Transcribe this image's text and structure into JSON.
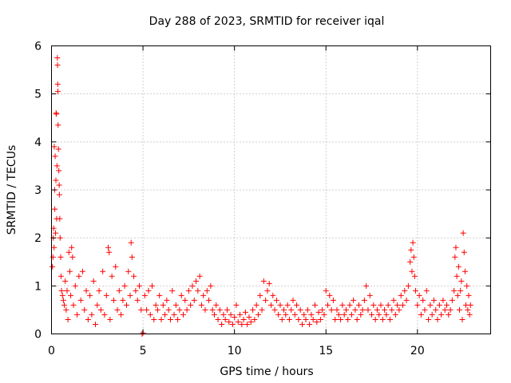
{
  "chart_data": {
    "type": "scatter",
    "title": "Day 288 of 2023, SRMTID for receiver iqal",
    "xlabel": "GPS time / hours",
    "ylabel": "SRMTID / TECUs",
    "xlim": [
      0,
      24
    ],
    "ylim": [
      0,
      6
    ],
    "x_ticks": [
      0,
      5,
      10,
      15,
      20
    ],
    "x_tick_labels": [
      "0",
      "5",
      "10",
      "15",
      "20"
    ],
    "y_ticks": [
      0,
      1,
      2,
      3,
      4,
      5,
      6
    ],
    "y_tick_labels": [
      "0",
      "1",
      "2",
      "3",
      "4",
      "5",
      "6"
    ],
    "grid": true,
    "marker": "+",
    "color": "#ff0000",
    "series": [
      {
        "name": "iqal",
        "points": [
          [
            0.05,
            1.4
          ],
          [
            0.08,
            1.6
          ],
          [
            0.1,
            2.0
          ],
          [
            0.12,
            2.2
          ],
          [
            0.14,
            1.8
          ],
          [
            0.15,
            3.9
          ],
          [
            0.17,
            3.0
          ],
          [
            0.18,
            2.6
          ],
          [
            0.2,
            3.7
          ],
          [
            0.22,
            2.1
          ],
          [
            0.24,
            3.2
          ],
          [
            0.25,
            4.6
          ],
          [
            0.27,
            4.58
          ],
          [
            0.28,
            2.4
          ],
          [
            0.3,
            3.5
          ],
          [
            0.32,
            5.75
          ],
          [
            0.33,
            5.6
          ],
          [
            0.34,
            5.2
          ],
          [
            0.35,
            5.05
          ],
          [
            0.36,
            4.35
          ],
          [
            0.38,
            3.85
          ],
          [
            0.4,
            3.4
          ],
          [
            0.42,
            3.1
          ],
          [
            0.43,
            2.9
          ],
          [
            0.45,
            2.4
          ],
          [
            0.47,
            2.0
          ],
          [
            0.5,
            1.6
          ],
          [
            0.52,
            1.2
          ],
          [
            0.55,
            0.9
          ],
          [
            0.6,
            0.8
          ],
          [
            0.65,
            0.7
          ],
          [
            0.7,
            0.6
          ],
          [
            0.75,
            1.1
          ],
          [
            0.8,
            0.5
          ],
          [
            0.85,
            0.9
          ],
          [
            0.9,
            0.3
          ],
          [
            0.95,
            1.7
          ],
          [
            1.0,
            1.3
          ],
          [
            1.05,
            0.8
          ],
          [
            1.1,
            1.8
          ],
          [
            1.15,
            1.6
          ],
          [
            1.2,
            0.6
          ],
          [
            1.3,
            1.0
          ],
          [
            1.4,
            0.4
          ],
          [
            1.5,
            1.2
          ],
          [
            1.6,
            0.7
          ],
          [
            1.7,
            1.3
          ],
          [
            1.8,
            0.5
          ],
          [
            1.9,
            0.9
          ],
          [
            2.0,
            0.3
          ],
          [
            2.1,
            0.8
          ],
          [
            2.2,
            0.4
          ],
          [
            2.3,
            1.1
          ],
          [
            2.4,
            0.2
          ],
          [
            2.5,
            0.6
          ],
          [
            2.6,
            0.9
          ],
          [
            2.7,
            0.5
          ],
          [
            2.8,
            1.3
          ],
          [
            2.9,
            0.4
          ],
          [
            3.0,
            0.8
          ],
          [
            3.1,
            1.8
          ],
          [
            3.15,
            1.7
          ],
          [
            3.2,
            0.3
          ],
          [
            3.3,
            1.2
          ],
          [
            3.4,
            0.7
          ],
          [
            3.5,
            1.4
          ],
          [
            3.6,
            0.5
          ],
          [
            3.7,
            0.9
          ],
          [
            3.8,
            0.4
          ],
          [
            3.9,
            0.7
          ],
          [
            4.0,
            1.0
          ],
          [
            4.1,
            0.6
          ],
          [
            4.2,
            1.3
          ],
          [
            4.3,
            0.8
          ],
          [
            4.35,
            1.9
          ],
          [
            4.4,
            1.6
          ],
          [
            4.5,
            1.2
          ],
          [
            4.6,
            0.9
          ],
          [
            4.7,
            0.7
          ],
          [
            4.8,
            1.0
          ],
          [
            4.9,
            0.5
          ],
          [
            4.95,
            0.0
          ],
          [
            5.0,
            0.02
          ],
          [
            5.1,
            0.8
          ],
          [
            5.2,
            0.5
          ],
          [
            5.3,
            0.9
          ],
          [
            5.4,
            0.4
          ],
          [
            5.5,
            1.0
          ],
          [
            5.6,
            0.3
          ],
          [
            5.7,
            0.6
          ],
          [
            5.8,
            0.5
          ],
          [
            5.9,
            0.8
          ],
          [
            6.0,
            0.3
          ],
          [
            6.1,
            0.6
          ],
          [
            6.2,
            0.4
          ],
          [
            6.3,
            0.7
          ],
          [
            6.4,
            0.5
          ],
          [
            6.5,
            0.3
          ],
          [
            6.6,
            0.9
          ],
          [
            6.7,
            0.4
          ],
          [
            6.8,
            0.6
          ],
          [
            6.9,
            0.3
          ],
          [
            7.0,
            0.5
          ],
          [
            7.1,
            0.8
          ],
          [
            7.2,
            0.4
          ],
          [
            7.3,
            0.7
          ],
          [
            7.4,
            0.5
          ],
          [
            7.5,
            0.9
          ],
          [
            7.6,
            0.6
          ],
          [
            7.7,
            1.0
          ],
          [
            7.8,
            0.7
          ],
          [
            7.9,
            1.1
          ],
          [
            8.0,
            0.9
          ],
          [
            8.1,
            1.2
          ],
          [
            8.2,
            0.6
          ],
          [
            8.3,
            0.8
          ],
          [
            8.4,
            0.5
          ],
          [
            8.5,
            0.9
          ],
          [
            8.6,
            0.7
          ],
          [
            8.7,
            1.0
          ],
          [
            8.8,
            0.5
          ],
          [
            8.9,
            0.4
          ],
          [
            9.0,
            0.6
          ],
          [
            9.1,
            0.3
          ],
          [
            9.2,
            0.5
          ],
          [
            9.3,
            0.2
          ],
          [
            9.4,
            0.4
          ],
          [
            9.5,
            0.3
          ],
          [
            9.6,
            0.5
          ],
          [
            9.7,
            0.25
          ],
          [
            9.8,
            0.4
          ],
          [
            9.9,
            0.2
          ],
          [
            10.0,
            0.35
          ],
          [
            10.1,
            0.6
          ],
          [
            10.2,
            0.25
          ],
          [
            10.3,
            0.4
          ],
          [
            10.4,
            0.2
          ],
          [
            10.5,
            0.3
          ],
          [
            10.6,
            0.45
          ],
          [
            10.7,
            0.2
          ],
          [
            10.8,
            0.35
          ],
          [
            10.9,
            0.25
          ],
          [
            11.0,
            0.5
          ],
          [
            11.1,
            0.3
          ],
          [
            11.2,
            0.6
          ],
          [
            11.3,
            0.4
          ],
          [
            11.4,
            0.8
          ],
          [
            11.5,
            0.5
          ],
          [
            11.6,
            1.1
          ],
          [
            11.7,
            0.7
          ],
          [
            11.8,
            0.9
          ],
          [
            11.9,
            1.05
          ],
          [
            12.0,
            0.6
          ],
          [
            12.1,
            0.8
          ],
          [
            12.2,
            0.5
          ],
          [
            12.3,
            0.7
          ],
          [
            12.4,
            0.4
          ],
          [
            12.5,
            0.6
          ],
          [
            12.6,
            0.3
          ],
          [
            12.7,
            0.5
          ],
          [
            12.8,
            0.4
          ],
          [
            12.9,
            0.6
          ],
          [
            13.0,
            0.3
          ],
          [
            13.1,
            0.5
          ],
          [
            13.2,
            0.7
          ],
          [
            13.3,
            0.4
          ],
          [
            13.4,
            0.6
          ],
          [
            13.5,
            0.3
          ],
          [
            13.6,
            0.5
          ],
          [
            13.7,
            0.2
          ],
          [
            13.8,
            0.4
          ],
          [
            13.9,
            0.3
          ],
          [
            14.0,
            0.5
          ],
          [
            14.1,
            0.2
          ],
          [
            14.2,
            0.4
          ],
          [
            14.3,
            0.3
          ],
          [
            14.4,
            0.6
          ],
          [
            14.5,
            0.25
          ],
          [
            14.6,
            0.45
          ],
          [
            14.7,
            0.3
          ],
          [
            14.8,
            0.5
          ],
          [
            14.9,
            0.4
          ],
          [
            15.0,
            0.9
          ],
          [
            15.1,
            0.6
          ],
          [
            15.2,
            0.8
          ],
          [
            15.3,
            0.5
          ],
          [
            15.4,
            0.7
          ],
          [
            15.5,
            0.3
          ],
          [
            15.6,
            0.5
          ],
          [
            15.7,
            0.4
          ],
          [
            15.8,
            0.3
          ],
          [
            15.9,
            0.6
          ],
          [
            16.0,
            0.4
          ],
          [
            16.1,
            0.5
          ],
          [
            16.2,
            0.3
          ],
          [
            16.3,
            0.6
          ],
          [
            16.4,
            0.4
          ],
          [
            16.5,
            0.7
          ],
          [
            16.6,
            0.5
          ],
          [
            16.7,
            0.3
          ],
          [
            16.8,
            0.6
          ],
          [
            16.9,
            0.4
          ],
          [
            17.0,
            0.5
          ],
          [
            17.1,
            0.7
          ],
          [
            17.2,
            1.0
          ],
          [
            17.3,
            0.5
          ],
          [
            17.4,
            0.8
          ],
          [
            17.5,
            0.4
          ],
          [
            17.6,
            0.6
          ],
          [
            17.7,
            0.3
          ],
          [
            17.8,
            0.5
          ],
          [
            17.9,
            0.4
          ],
          [
            18.0,
            0.6
          ],
          [
            18.1,
            0.3
          ],
          [
            18.2,
            0.5
          ],
          [
            18.3,
            0.4
          ],
          [
            18.4,
            0.6
          ],
          [
            18.5,
            0.3
          ],
          [
            18.6,
            0.5
          ],
          [
            18.7,
            0.7
          ],
          [
            18.8,
            0.4
          ],
          [
            18.9,
            0.6
          ],
          [
            19.0,
            0.5
          ],
          [
            19.1,
            0.8
          ],
          [
            19.2,
            0.6
          ],
          [
            19.3,
            0.9
          ],
          [
            19.4,
            0.7
          ],
          [
            19.5,
            1.0
          ],
          [
            19.6,
            1.5
          ],
          [
            19.65,
            1.75
          ],
          [
            19.7,
            1.3
          ],
          [
            19.75,
            1.9
          ],
          [
            19.8,
            1.6
          ],
          [
            19.85,
            1.2
          ],
          [
            19.9,
            0.9
          ],
          [
            20.0,
            0.6
          ],
          [
            20.1,
            0.8
          ],
          [
            20.2,
            0.4
          ],
          [
            20.3,
            0.7
          ],
          [
            20.4,
            0.5
          ],
          [
            20.5,
            0.9
          ],
          [
            20.6,
            0.3
          ],
          [
            20.7,
            0.6
          ],
          [
            20.8,
            0.4
          ],
          [
            20.9,
            0.7
          ],
          [
            21.0,
            0.5
          ],
          [
            21.1,
            0.3
          ],
          [
            21.2,
            0.6
          ],
          [
            21.3,
            0.4
          ],
          [
            21.4,
            0.7
          ],
          [
            21.5,
            0.5
          ],
          [
            21.6,
            0.6
          ],
          [
            21.7,
            0.4
          ],
          [
            21.8,
            0.5
          ],
          [
            21.9,
            0.7
          ],
          [
            22.0,
            0.9
          ],
          [
            22.05,
            1.6
          ],
          [
            22.1,
            1.8
          ],
          [
            22.15,
            1.2
          ],
          [
            22.2,
            0.8
          ],
          [
            22.25,
            1.4
          ],
          [
            22.3,
            0.5
          ],
          [
            22.35,
            0.9
          ],
          [
            22.4,
            1.1
          ],
          [
            22.45,
            0.3
          ],
          [
            22.5,
            2.1
          ],
          [
            22.55,
            1.7
          ],
          [
            22.6,
            1.3
          ],
          [
            22.65,
            0.6
          ],
          [
            22.7,
            1.0
          ],
          [
            22.75,
            0.5
          ],
          [
            22.8,
            0.8
          ],
          [
            22.85,
            0.4
          ],
          [
            22.9,
            0.6
          ]
        ]
      }
    ]
  }
}
